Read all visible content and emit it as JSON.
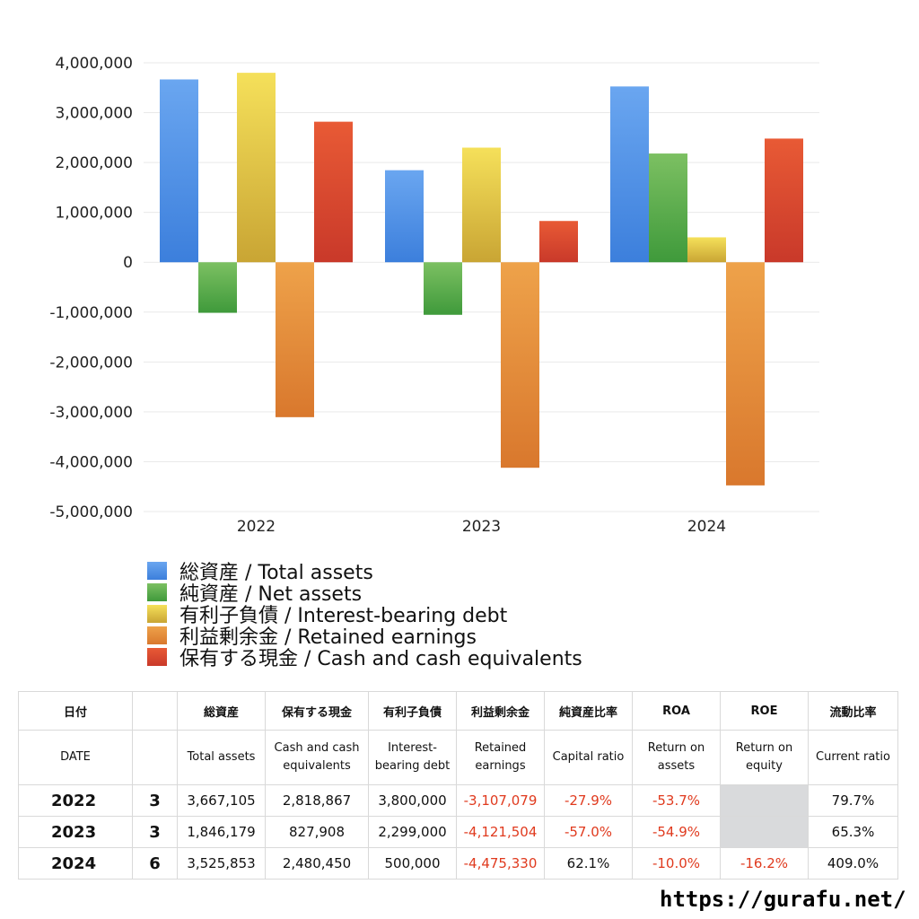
{
  "chart_data": {
    "type": "bar",
    "categories": [
      "2022",
      "2023",
      "2024"
    ],
    "ylim": [
      -5000000,
      4000000
    ],
    "yticks": [
      "4,000,000",
      "3,000,000",
      "2,000,000",
      "1,000,000",
      "0",
      "-1,000,000",
      "-2,000,000",
      "-3,000,000",
      "-4,000,000",
      "-5,000,000"
    ],
    "ytick_values": [
      4000000,
      3000000,
      2000000,
      1000000,
      0,
      -1000000,
      -2000000,
      -3000000,
      -4000000,
      -5000000
    ],
    "grid": true,
    "legend_position": "bottom",
    "series": [
      {
        "name": "総資産 / Total assets",
        "color": "#3c7fdc",
        "color_light": "#6aa6f0",
        "values": [
          3667105,
          1846179,
          3525853
        ]
      },
      {
        "name": "純資産 / Net assets",
        "color": "#3f9a3b",
        "color_light": "#7cc062",
        "values": [
          -1014000,
          -1054000,
          2181000
        ]
      },
      {
        "name": "有利子負債 / Interest-bearing debt",
        "color": "#c9a534",
        "color_light": "#f5e05a",
        "values": [
          3800000,
          2299000,
          500000
        ]
      },
      {
        "name": "利益剰余金 / Retained earnings",
        "color": "#d9782d",
        "color_light": "#eea24a",
        "values": [
          -3107079,
          -4121504,
          -4475330
        ]
      },
      {
        "name": "保有する現金 /  Cash and cash equivalents",
        "color": "#c9392a",
        "color_light": "#e85a35",
        "values": [
          2818867,
          827908,
          2480450
        ]
      }
    ]
  },
  "table": {
    "header_jp": [
      "日付",
      "",
      "総資産",
      "保有する現金",
      "有利子負債",
      "利益剰余金",
      "純資産比率",
      "ROA",
      "ROE",
      "流動比率"
    ],
    "header_en": [
      "DATE",
      "",
      "Total assets",
      "Cash and cash equivalents",
      "Interest-bearing debt",
      "Retained earnings",
      "Capital ratio",
      "Return on assets",
      "Return on equity",
      "Current ratio"
    ],
    "rows": [
      {
        "year": "2022",
        "month": "3",
        "total_assets": "3,667,105",
        "cash": "2,818,867",
        "debt": "3,800,000",
        "retained": "-3,107,079",
        "capital_ratio": "-27.9%",
        "roa": "-53.7%",
        "roe": "",
        "current_ratio": "79.7%"
      },
      {
        "year": "2023",
        "month": "3",
        "total_assets": "1,846,179",
        "cash": "827,908",
        "debt": "2,299,000",
        "retained": "-4,121,504",
        "capital_ratio": "-57.0%",
        "roa": "-54.9%",
        "roe": "",
        "current_ratio": "65.3%"
      },
      {
        "year": "2024",
        "month": "6",
        "total_assets": "3,525,853",
        "cash": "2,480,450",
        "debt": "500,000",
        "retained": "-4,475,330",
        "capital_ratio": "62.1%",
        "roa": "-10.0%",
        "roe": "-16.2%",
        "current_ratio": "409.0%"
      }
    ]
  },
  "footer": {
    "url": "https://gurafu.net/"
  }
}
